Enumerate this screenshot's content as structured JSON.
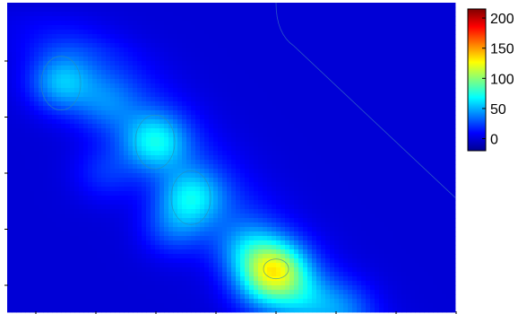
{
  "chart_data": {
    "type": "heatmap",
    "title": "",
    "xlabel": "",
    "ylabel": "",
    "x_tick_count": 8,
    "y_tick_count": 5,
    "grid": false,
    "colormap": "jet",
    "colorbar": {
      "min": -20,
      "max": 215,
      "ticks": [
        {
          "value": 0,
          "label": "0"
        },
        {
          "value": 50,
          "label": "50"
        },
        {
          "value": 100,
          "label": "100"
        },
        {
          "value": 150,
          "label": "150"
        },
        {
          "value": 200,
          "label": "200"
        }
      ]
    },
    "background_value": 0,
    "hotspots": [
      {
        "x": 0.12,
        "y": 0.26,
        "value": 45
      },
      {
        "x": 0.22,
        "y": 0.33,
        "value": 22
      },
      {
        "x": 0.33,
        "y": 0.45,
        "value": 52
      },
      {
        "x": 0.41,
        "y": 0.63,
        "value": 48
      },
      {
        "x": 0.22,
        "y": 0.55,
        "value": 18
      },
      {
        "x": 0.37,
        "y": 0.73,
        "value": 26
      },
      {
        "x": 0.54,
        "y": 0.8,
        "value": 32
      },
      {
        "x": 0.6,
        "y": 0.86,
        "value": 80
      },
      {
        "x": 0.57,
        "y": 0.92,
        "value": 30
      },
      {
        "x": 0.66,
        "y": 0.95,
        "value": 28
      },
      {
        "x": 0.75,
        "y": 0.99,
        "value": 24
      }
    ],
    "contour_levels": [
      10,
      40,
      70
    ]
  }
}
